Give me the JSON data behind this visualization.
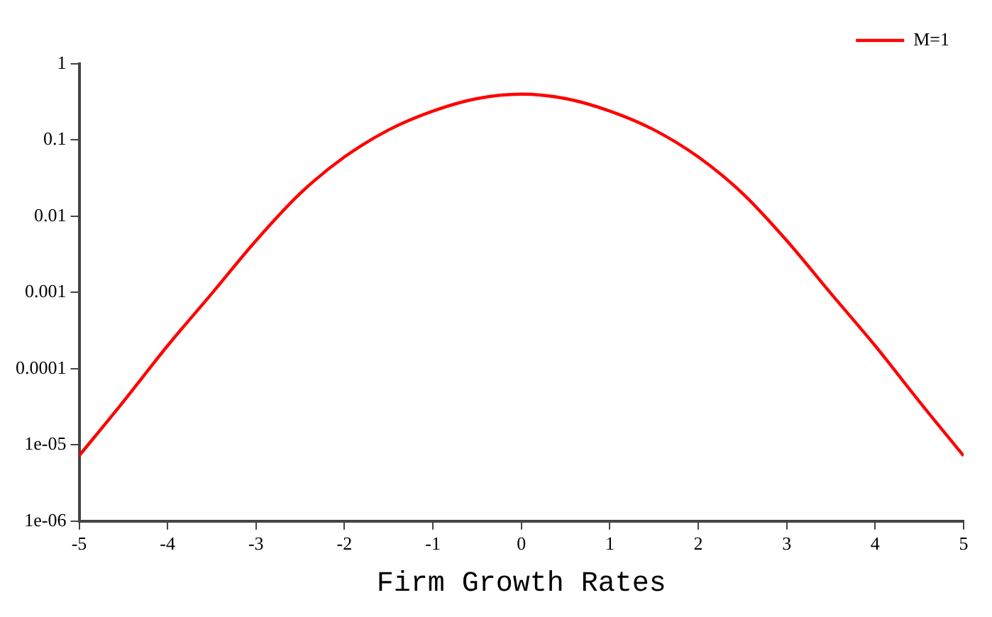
{
  "chart_data": {
    "type": "line",
    "xlabel": "Firm Growth Rates",
    "log": "y",
    "grid": false,
    "legend": "top right",
    "marker": "none",
    "line_style": "solid",
    "x": [
      -5,
      -4.5,
      -4,
      -3.5,
      -3,
      -2.5,
      -2,
      -1.5,
      -1,
      -0.5,
      0,
      0.5,
      1,
      1.5,
      2,
      2.5,
      3,
      3.5,
      4,
      4.5,
      5
    ],
    "series": [
      {
        "name": "M=1",
        "color": "#ff0000",
        "values": [
          7.2e-06,
          3.7e-05,
          0.0002,
          0.00097,
          0.0048,
          0.02,
          0.06,
          0.136,
          0.24,
          0.35,
          0.4,
          0.35,
          0.24,
          0.136,
          0.06,
          0.02,
          0.0048,
          0.00097,
          0.0002,
          3.7e-05,
          7.2e-06
        ]
      }
    ],
    "xlim": [
      -5,
      5
    ],
    "xticks": [
      -5,
      -4,
      -3,
      -2,
      -1,
      0,
      1,
      2,
      3,
      4,
      5
    ],
    "ylim": [
      1e-06,
      1
    ],
    "yticks": [
      {
        "value": 1e-06,
        "label": "1e-06"
      },
      {
        "value": 1e-05,
        "label": "1e-05"
      },
      0.0001,
      0.001,
      0.01,
      0.1,
      1
    ]
  }
}
